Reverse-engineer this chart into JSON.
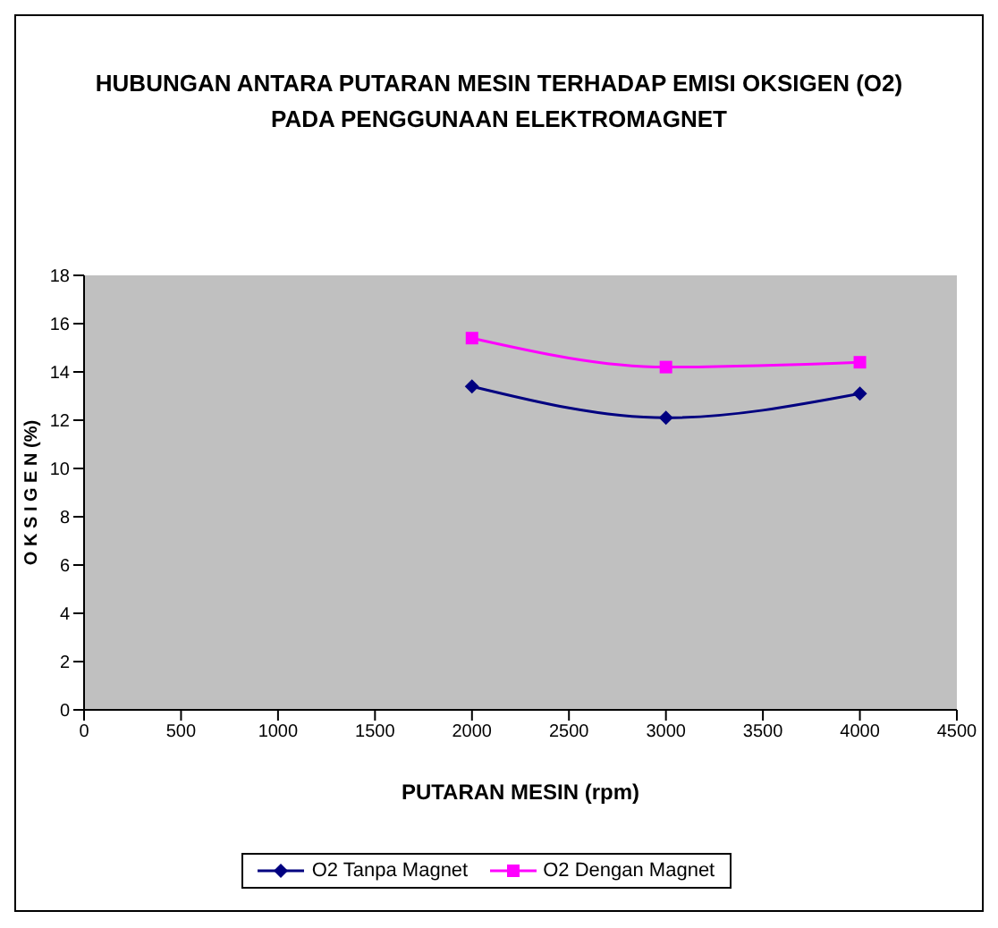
{
  "chart_data": {
    "type": "line",
    "title": "HUBUNGAN ANTARA PUTARAN MESIN TERHADAP EMISI OKSIGEN (O2)\nPADA PENGGUNAAN ELEKTROMAGNET",
    "xlabel": "PUTARAN MESIN (rpm)",
    "ylabel": "O K S I G E N  (%)",
    "x": [
      2000,
      3000,
      4000
    ],
    "series": [
      {
        "name": "O2 Tanpa Magnet",
        "color": "#000080",
        "marker": "diamond",
        "values": [
          13.4,
          12.1,
          13.1
        ]
      },
      {
        "name": "O2 Dengan Magnet",
        "color": "#ff00ff",
        "marker": "square",
        "values": [
          15.4,
          14.2,
          14.4
        ]
      }
    ],
    "xlim": [
      0,
      4500
    ],
    "xticks": [
      0,
      500,
      1000,
      1500,
      2000,
      2500,
      3000,
      3500,
      4000,
      4500
    ],
    "ylim": [
      0,
      18
    ],
    "yticks": [
      0,
      2,
      4,
      6,
      8,
      10,
      12,
      14,
      16,
      18
    ],
    "grid": false,
    "legend": "bottom"
  }
}
